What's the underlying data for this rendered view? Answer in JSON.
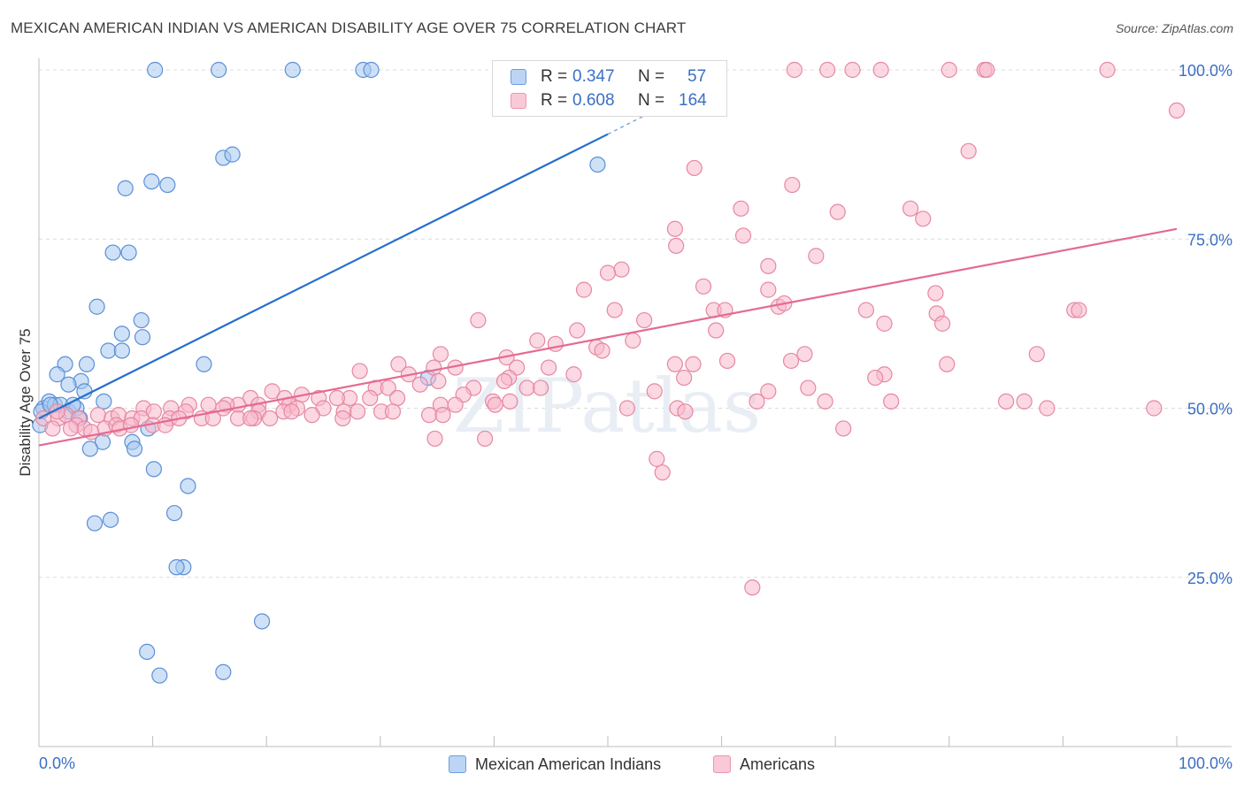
{
  "header": {
    "title": "MEXICAN AMERICAN INDIAN VS AMERICAN DISABILITY AGE OVER 75 CORRELATION CHART",
    "source": "Source: ZipAtlas.com"
  },
  "legend": {
    "series": [
      {
        "r_label": "R =",
        "r_value": "0.347",
        "n_label": "N =",
        "n_value": "57"
      },
      {
        "r_label": "R =",
        "r_value": "0.608",
        "n_label": "N =",
        "n_value": "164"
      }
    ]
  },
  "bottom_legend": {
    "items": [
      {
        "label": "Mexican American Indians"
      },
      {
        "label": "Americans"
      }
    ]
  },
  "colors": {
    "blue_fill": "#a8c8f0",
    "blue_stroke": "#5b8fd6",
    "blue_line": "#2670c9",
    "pink_fill": "#f7b8cc",
    "pink_stroke": "#e6889f",
    "pink_line": "#e46a93",
    "axis_label": "#3a6fc4",
    "grid": "#dcdcdc"
  },
  "chart_data": {
    "type": "scatter",
    "title": "MEXICAN AMERICAN INDIAN VS AMERICAN DISABILITY AGE OVER 75 CORRELATION CHART",
    "xlabel": "",
    "ylabel": "Disability Age Over 75",
    "xlim": [
      0,
      100
    ],
    "ylim": [
      0,
      102
    ],
    "x_tick_labels": [
      "0.0%",
      "100.0%"
    ],
    "y_ticks": [
      25,
      50,
      75,
      100
    ],
    "y_tick_labels": [
      "25.0%",
      "50.0%",
      "75.0%",
      "100.0%"
    ],
    "watermark": "ZIPatlas",
    "series": [
      {
        "name": "Mexican American Indians",
        "color": "blue",
        "trend": {
          "x0": 0,
          "y0": 48.5,
          "x1": 50,
          "y1": 90.5,
          "dashed_to_x": 60,
          "dashed_to_y": 99
        },
        "points": [
          [
            10.2,
            100
          ],
          [
            15.8,
            100
          ],
          [
            22.3,
            100
          ],
          [
            28.5,
            100
          ],
          [
            29.2,
            100
          ],
          [
            16.2,
            87
          ],
          [
            17.0,
            87.5
          ],
          [
            49.1,
            86
          ],
          [
            7.6,
            82.5
          ],
          [
            9.9,
            83.5
          ],
          [
            11.3,
            83
          ],
          [
            6.5,
            73
          ],
          [
            7.9,
            73
          ],
          [
            5.1,
            65
          ],
          [
            7.3,
            61
          ],
          [
            9.1,
            60.5
          ],
          [
            9.0,
            63
          ],
          [
            6.1,
            58.5
          ],
          [
            7.3,
            58.5
          ],
          [
            2.3,
            56.5
          ],
          [
            4.2,
            56.5
          ],
          [
            14.5,
            56.5
          ],
          [
            1.6,
            55
          ],
          [
            3.7,
            54
          ],
          [
            2.6,
            53.5
          ],
          [
            4.0,
            52.5
          ],
          [
            5.7,
            51
          ],
          [
            0.4,
            50
          ],
          [
            0.9,
            51
          ],
          [
            1.4,
            50.5
          ],
          [
            1.9,
            50.5
          ],
          [
            2.6,
            49.5
          ],
          [
            3.3,
            50
          ],
          [
            3.6,
            48.5
          ],
          [
            0.2,
            49.5
          ],
          [
            0.1,
            47.5
          ],
          [
            9.6,
            47
          ],
          [
            5.6,
            45
          ],
          [
            8.2,
            45
          ],
          [
            4.5,
            44
          ],
          [
            8.4,
            44
          ],
          [
            10.1,
            41
          ],
          [
            13.1,
            38.5
          ],
          [
            11.9,
            34.5
          ],
          [
            4.9,
            33
          ],
          [
            6.3,
            33.5
          ],
          [
            12.7,
            26.5
          ],
          [
            12.1,
            26.5
          ],
          [
            19.6,
            18.5
          ],
          [
            9.5,
            14
          ],
          [
            10.6,
            10.5
          ],
          [
            16.2,
            11
          ],
          [
            34.2,
            54.5
          ],
          [
            3.0,
            50.5
          ],
          [
            1.0,
            50.5
          ]
        ]
      },
      {
        "name": "Americans",
        "color": "pink",
        "trend": {
          "x0": 0,
          "y0": 44.5,
          "x1": 100,
          "y1": 76.5
        },
        "points": [
          [
            66.4,
            100
          ],
          [
            69.3,
            100
          ],
          [
            71.5,
            100
          ],
          [
            74.0,
            100
          ],
          [
            80.0,
            100
          ],
          [
            83.1,
            100
          ],
          [
            83.3,
            100
          ],
          [
            93.9,
            100
          ],
          [
            100.0,
            94
          ],
          [
            81.7,
            88
          ],
          [
            57.6,
            85.5
          ],
          [
            66.2,
            83
          ],
          [
            61.7,
            79.5
          ],
          [
            70.2,
            79
          ],
          [
            76.6,
            79.5
          ],
          [
            77.7,
            78
          ],
          [
            55.9,
            76.5
          ],
          [
            61.9,
            75.5
          ],
          [
            56.0,
            74
          ],
          [
            68.3,
            72.5
          ],
          [
            64.1,
            71
          ],
          [
            51.2,
            70.5
          ],
          [
            50.0,
            70
          ],
          [
            58.4,
            68
          ],
          [
            47.9,
            67.5
          ],
          [
            64.1,
            67.5
          ],
          [
            78.8,
            67
          ],
          [
            65.0,
            65
          ],
          [
            65.5,
            65.5
          ],
          [
            50.6,
            64.5
          ],
          [
            59.3,
            64.5
          ],
          [
            60.3,
            64.5
          ],
          [
            72.7,
            64.5
          ],
          [
            78.9,
            64
          ],
          [
            91.0,
            64.5
          ],
          [
            91.4,
            64.5
          ],
          [
            38.6,
            63
          ],
          [
            53.2,
            63
          ],
          [
            74.3,
            62.5
          ],
          [
            79.4,
            62.5
          ],
          [
            47.3,
            61.5
          ],
          [
            59.5,
            61.5
          ],
          [
            52.2,
            60
          ],
          [
            43.8,
            60
          ],
          [
            45.4,
            59.5
          ],
          [
            49.0,
            59
          ],
          [
            49.5,
            58.5
          ],
          [
            67.3,
            58
          ],
          [
            66.1,
            57
          ],
          [
            87.7,
            58
          ],
          [
            35.3,
            58
          ],
          [
            41.1,
            57.5
          ],
          [
            60.5,
            57
          ],
          [
            55.9,
            56.5
          ],
          [
            57.5,
            56.5
          ],
          [
            79.8,
            56.5
          ],
          [
            34.7,
            56
          ],
          [
            31.6,
            56.5
          ],
          [
            36.6,
            56
          ],
          [
            44.8,
            56
          ],
          [
            42.0,
            56
          ],
          [
            28.2,
            55.5
          ],
          [
            74.3,
            55
          ],
          [
            73.5,
            54.5
          ],
          [
            32.5,
            55
          ],
          [
            47.0,
            55
          ],
          [
            41.3,
            54.5
          ],
          [
            56.7,
            54.5
          ],
          [
            40.9,
            54
          ],
          [
            35.1,
            54
          ],
          [
            33.5,
            53.5
          ],
          [
            29.6,
            53
          ],
          [
            42.9,
            53
          ],
          [
            44.1,
            53
          ],
          [
            67.6,
            53
          ],
          [
            20.5,
            52.5
          ],
          [
            30.7,
            53
          ],
          [
            38.2,
            53
          ],
          [
            64.1,
            52.5
          ],
          [
            54.1,
            52.5
          ],
          [
            37.3,
            52
          ],
          [
            23.1,
            52
          ],
          [
            24.6,
            51.5
          ],
          [
            27.3,
            51.5
          ],
          [
            18.6,
            51.5
          ],
          [
            21.6,
            51.5
          ],
          [
            26.2,
            51.5
          ],
          [
            29.1,
            51.5
          ],
          [
            31.5,
            51.5
          ],
          [
            39.9,
            51
          ],
          [
            63.1,
            51
          ],
          [
            69.1,
            51
          ],
          [
            74.9,
            51
          ],
          [
            85.0,
            51
          ],
          [
            86.6,
            51
          ],
          [
            41.4,
            51
          ],
          [
            22.0,
            50.5
          ],
          [
            19.3,
            50.5
          ],
          [
            17.5,
            50.5
          ],
          [
            16.5,
            50.5
          ],
          [
            14.9,
            50.5
          ],
          [
            13.2,
            50.5
          ],
          [
            11.6,
            50
          ],
          [
            22.7,
            50
          ],
          [
            25.0,
            50
          ],
          [
            30.1,
            49.5
          ],
          [
            31.1,
            49.5
          ],
          [
            35.3,
            50.5
          ],
          [
            36.6,
            50.5
          ],
          [
            40.1,
            50.5
          ],
          [
            9.2,
            50
          ],
          [
            10.1,
            49.5
          ],
          [
            12.9,
            49.5
          ],
          [
            16.2,
            50
          ],
          [
            19.3,
            49.5
          ],
          [
            21.5,
            49.5
          ],
          [
            22.2,
            49.5
          ],
          [
            26.8,
            49.5
          ],
          [
            28.0,
            49.5
          ],
          [
            34.3,
            49
          ],
          [
            35.5,
            49
          ],
          [
            51.7,
            50
          ],
          [
            56.1,
            50
          ],
          [
            56.8,
            49.5
          ],
          [
            88.6,
            50
          ],
          [
            98.0,
            50
          ],
          [
            5.2,
            49
          ],
          [
            6.4,
            48.5
          ],
          [
            7.0,
            49
          ],
          [
            8.2,
            48.5
          ],
          [
            9.0,
            48.5
          ],
          [
            11.5,
            48.5
          ],
          [
            12.3,
            48.5
          ],
          [
            14.3,
            48.5
          ],
          [
            15.3,
            48.5
          ],
          [
            17.5,
            48.5
          ],
          [
            18.9,
            48.5
          ],
          [
            20.3,
            48.5
          ],
          [
            26.7,
            48.5
          ],
          [
            0.4,
            48.5
          ],
          [
            1.7,
            48.5
          ],
          [
            2.4,
            49
          ],
          [
            3.5,
            48.5
          ],
          [
            3.3,
            47.5
          ],
          [
            4.0,
            47
          ],
          [
            5.8,
            47
          ],
          [
            6.8,
            47.5
          ],
          [
            7.1,
            47
          ],
          [
            8.1,
            47.5
          ],
          [
            1.2,
            47
          ],
          [
            2.8,
            47
          ],
          [
            4.6,
            46.5
          ],
          [
            10.0,
            47.5
          ],
          [
            11.1,
            47.5
          ],
          [
            70.7,
            47
          ],
          [
            34.8,
            45.5
          ],
          [
            39.2,
            45.5
          ],
          [
            54.3,
            42.5
          ],
          [
            54.8,
            40.5
          ],
          [
            62.7,
            23.5
          ],
          [
            1.6,
            49.5
          ],
          [
            18.6,
            48.5
          ],
          [
            24.0,
            49
          ]
        ]
      }
    ]
  }
}
